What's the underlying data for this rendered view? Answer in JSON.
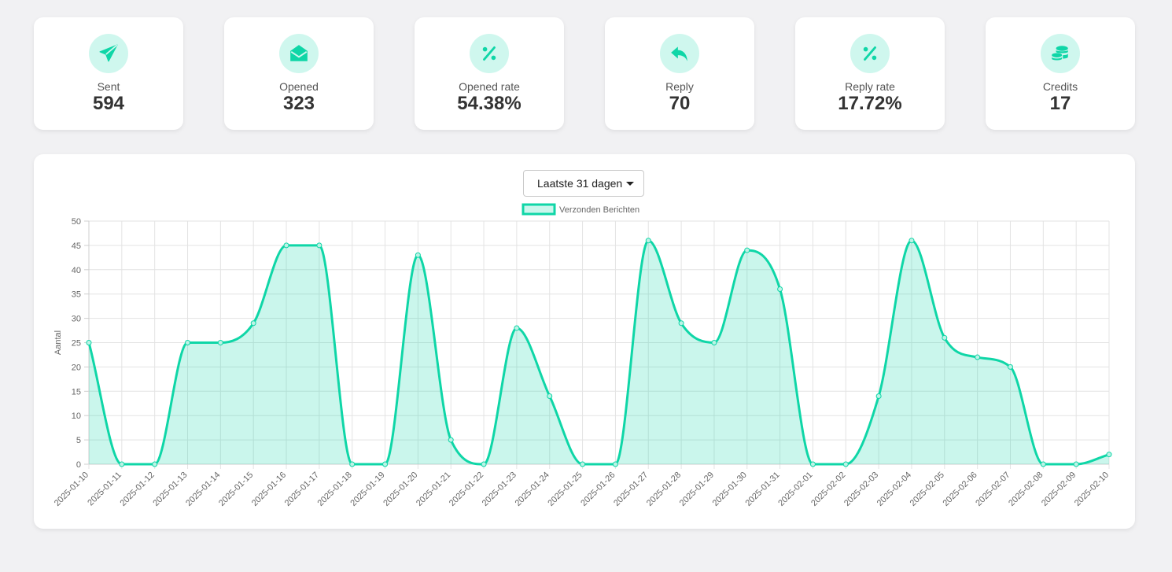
{
  "stats": [
    {
      "label": "Sent",
      "value": "594",
      "icon": "paper-plane-icon"
    },
    {
      "label": "Opened",
      "value": "323",
      "icon": "envelope-open-icon"
    },
    {
      "label": "Opened rate",
      "value": "54.38%",
      "icon": "percent-icon"
    },
    {
      "label": "Reply",
      "value": "70",
      "icon": "reply-icon"
    },
    {
      "label": "Reply rate",
      "value": "17.72%",
      "icon": "percent-icon"
    },
    {
      "label": "Credits",
      "value": "17",
      "icon": "coins-icon"
    }
  ],
  "colors": {
    "accent": "#0fd6a7",
    "accent_fill": "rgba(15,214,167,0.22)",
    "icon_bg": "#cff7ee"
  },
  "range_select": {
    "selected": "Laatste 31 dagen"
  },
  "chart_data": {
    "type": "area",
    "legend": "Verzonden Berichten",
    "ylabel": "Aantal",
    "xlabel": "",
    "ylim": [
      0,
      50
    ],
    "yticks": [
      0,
      5,
      10,
      15,
      20,
      25,
      30,
      35,
      40,
      45,
      50
    ],
    "grid": true,
    "legend_position": "top",
    "categories": [
      "2025-01-10",
      "2025-01-11",
      "2025-01-12",
      "2025-01-13",
      "2025-01-14",
      "2025-01-15",
      "2025-01-16",
      "2025-01-17",
      "2025-01-18",
      "2025-01-19",
      "2025-01-20",
      "2025-01-21",
      "2025-01-22",
      "2025-01-23",
      "2025-01-24",
      "2025-01-25",
      "2025-01-26",
      "2025-01-27",
      "2025-01-28",
      "2025-01-29",
      "2025-01-30",
      "2025-01-31",
      "2025-02-01",
      "2025-02-02",
      "2025-02-03",
      "2025-02-04",
      "2025-02-05",
      "2025-02-06",
      "2025-02-07",
      "2025-02-08",
      "2025-02-09",
      "2025-02-10"
    ],
    "series": [
      {
        "name": "Verzonden Berichten",
        "values": [
          25,
          0,
          0,
          25,
          25,
          29,
          45,
          45,
          0,
          0,
          43,
          5,
          0,
          28,
          14,
          0,
          0,
          46,
          29,
          25,
          44,
          36,
          0,
          0,
          14,
          46,
          26,
          22,
          20,
          0,
          0,
          2
        ]
      }
    ]
  }
}
